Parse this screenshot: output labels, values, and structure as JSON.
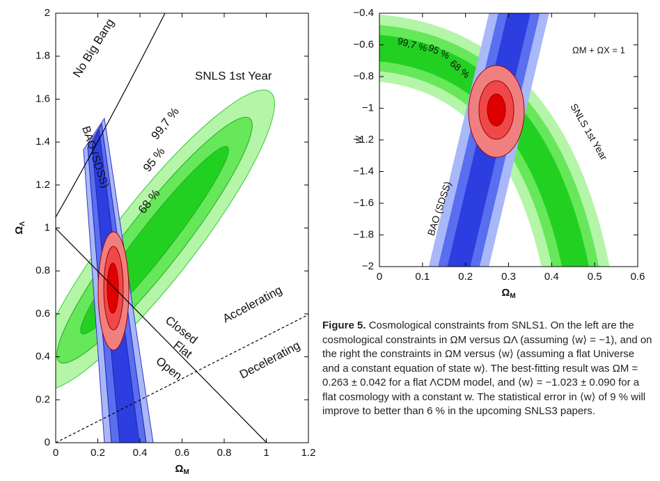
{
  "chart_data": [
    {
      "type": "contour",
      "xlabel": "Ω",
      "xlabel_sub": "M",
      "ylabel": "Ω",
      "ylabel_sub": "Λ",
      "xlim": [
        0,
        1.2
      ],
      "ylim": [
        0,
        2
      ],
      "xticks": [
        0,
        0.2,
        0.4,
        0.6,
        0.8,
        1,
        1.2
      ],
      "yticks": [
        0,
        0.2,
        0.4,
        0.6,
        0.8,
        1,
        1.2,
        1.4,
        1.6,
        1.8,
        2
      ],
      "annotations": [
        "No Big Bang",
        "BAO (SDSS)",
        "SNLS 1st Year",
        "99,7 %",
        "95 %",
        "68 %",
        "Closed",
        "Flat",
        "Open",
        "Accelerating",
        "Decelerating"
      ]
    },
    {
      "type": "contour",
      "xlabel": "Ω",
      "xlabel_sub": "M",
      "ylabel": "w",
      "xlim": [
        0,
        0.6
      ],
      "ylim": [
        -2,
        -0.4
      ],
      "xticks": [
        0,
        0.1,
        0.2,
        0.3,
        0.4,
        0.5,
        0.6
      ],
      "yticks": [
        {
          "value": -2,
          "label": "−2"
        },
        {
          "value": -1.8,
          "label": "−1.8"
        },
        {
          "value": -1.6,
          "label": "−1.6"
        },
        {
          "value": -1.4,
          "label": "−1.4"
        },
        {
          "value": -1.2,
          "label": "−1.2"
        },
        {
          "value": -1,
          "label": "−1"
        },
        {
          "value": -0.8,
          "label": "−0.8"
        },
        {
          "value": -0.6,
          "label": "−0.6"
        },
        {
          "value": -0.4,
          "label": "−0.4"
        }
      ],
      "annotations": [
        "99,7 %",
        "95 %",
        "68 %",
        "SNLS 1st Year",
        "BAO (SDSS)",
        "ΩM + ΩX = 1"
      ]
    }
  ],
  "caption": {
    "label": "Figure 5.",
    "text": "Cosmological constraints from SNLS1. On the left are the cosmological constraints in ΩM versus ΩΛ (assuming ⟨w⟩ = −1), and on the right the constraints in ΩM versus ⟨w⟩ (assuming a flat Universe and a constant equation of state w). The best-fitting result was ΩM = 0.263 ± 0.042 for a flat ΛCDM model, and ⟨w⟩ = −1.023 ± 0.090 for a flat cosmology with a constant w. The statistical error in ⟨w⟩ of 9 % will improve to better than 6 % in the upcoming SNLS3 papers."
  }
}
